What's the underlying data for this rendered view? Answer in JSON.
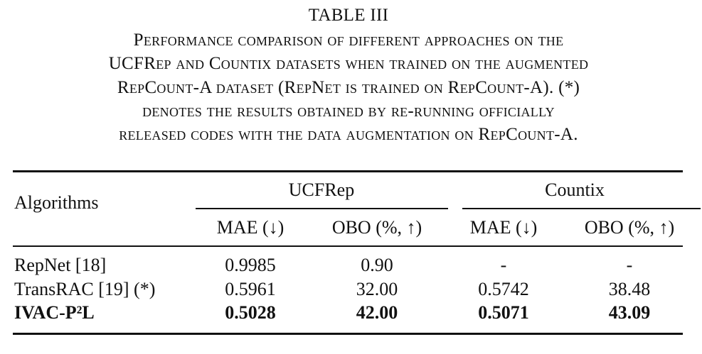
{
  "table_title": "TABLE III",
  "caption_lines": [
    "Performance comparison of different approaches on the",
    "UCFRep and Countix datasets when trained on the augmented",
    "RepCount-A dataset (RepNet is trained on RepCount-A). (*)",
    "denotes the results obtained by re-running officially",
    "released codes with the data augmentation on RepCount-A."
  ],
  "table": {
    "header": {
      "first": "Algorithms",
      "groups": [
        "UCFRep",
        "Countix"
      ],
      "columns": [
        "MAE (↓)",
        "OBO (%, ↑)",
        "MAE (↓)",
        "OBO (%, ↑)"
      ]
    },
    "rows": [
      [
        "RepNet [18]",
        "0.9985",
        "0.90",
        "-",
        "-"
      ],
      [
        "TransRAC [19] (*)",
        "0.5961",
        "32.00",
        "0.5742",
        "38.48"
      ],
      [
        "IVAC-P²L",
        "0.5028",
        "42.00",
        "0.5071",
        "43.09"
      ]
    ]
  }
}
